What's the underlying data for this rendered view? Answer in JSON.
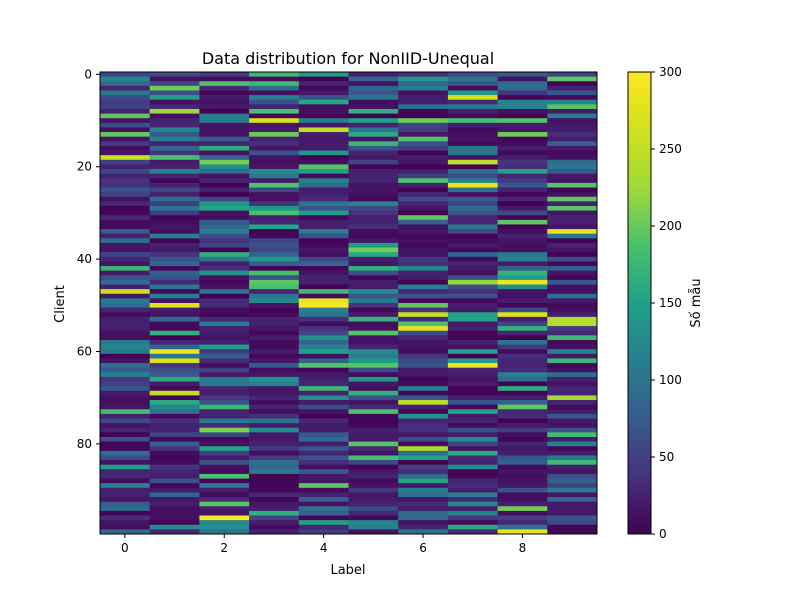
{
  "chart_data": {
    "type": "heatmap",
    "title": "Data distribution for NonIID-Unequal",
    "xlabel": "Label",
    "ylabel": "Client",
    "x_categories": [
      0,
      1,
      2,
      3,
      4,
      5,
      6,
      7,
      8,
      9
    ],
    "y_range": [
      0,
      99
    ],
    "x_ticks": [
      0,
      2,
      4,
      6,
      8
    ],
    "y_ticks": [
      0,
      20,
      40,
      60,
      80
    ],
    "colorbar": {
      "label": "Số mẫu",
      "min": 0,
      "max": 300,
      "ticks": [
        0,
        50,
        100,
        150,
        200,
        250,
        300
      ]
    },
    "colormap": "viridis",
    "colors": {
      "low": "#440154",
      "high": "#fde725"
    },
    "value_description": "Each row is a client, each column a label; cell color encodes number of samples (0–300).",
    "grid": false
  }
}
